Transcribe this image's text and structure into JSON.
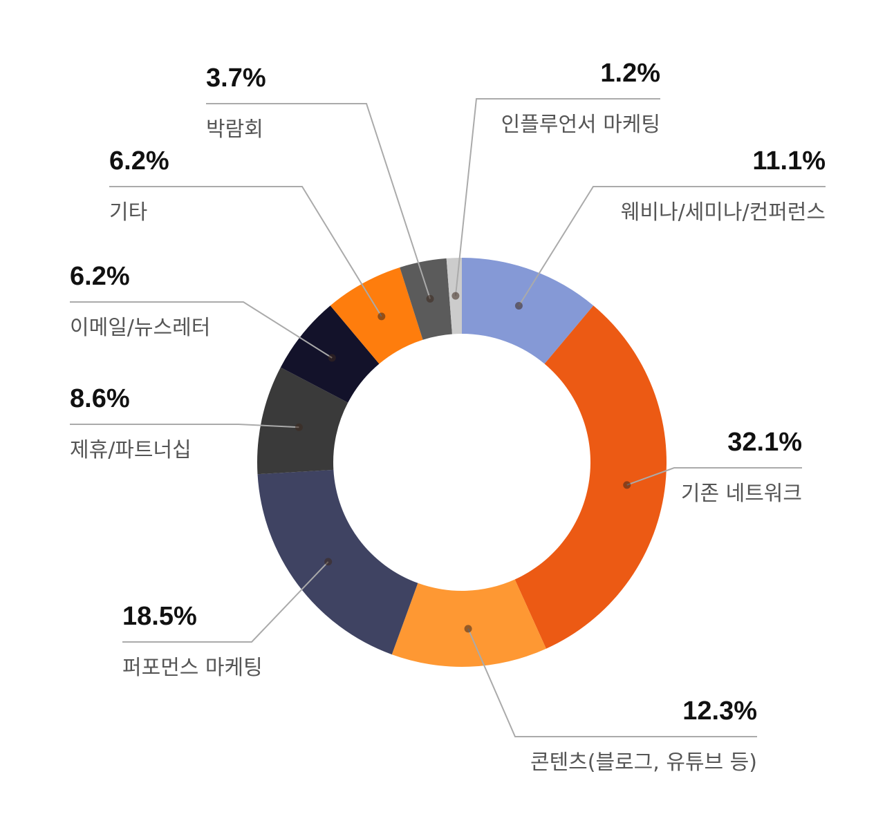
{
  "chart_data": {
    "type": "pie",
    "variant": "donut",
    "title": "",
    "unit": "%",
    "legend": "none",
    "slices": [
      {
        "label": "웨비나/세미나/컨퍼런스",
        "value": 11.1,
        "display": "11.1%",
        "color": "#8599d6"
      },
      {
        "label": "기존 네트워크",
        "value": 32.1,
        "display": "32.1%",
        "color": "#ec5a14"
      },
      {
        "label": "콘텐츠(블로그, 유튜브 등)",
        "value": 12.3,
        "display": "12.3%",
        "color": "#fe9833"
      },
      {
        "label": "퍼포먼스 마케팅",
        "value": 18.5,
        "display": "18.5%",
        "color": "#3f4362"
      },
      {
        "label": "제휴/파트너십",
        "value": 8.6,
        "display": "8.6%",
        "color": "#3a3a3a"
      },
      {
        "label": "이메일/뉴스레터",
        "value": 6.2,
        "display": "6.2%",
        "color": "#13122a"
      },
      {
        "label": "기타",
        "value": 6.2,
        "display": "6.2%",
        "color": "#fe7d0d"
      },
      {
        "label": "박람회",
        "value": 3.7,
        "display": "3.7%",
        "color": "#5b5b5b"
      },
      {
        "label": "인플루언서 마케팅",
        "value": 1.2,
        "display": "1.2%",
        "color": "#cccccc"
      }
    ],
    "leader_line_color": "#aaaaaa"
  }
}
